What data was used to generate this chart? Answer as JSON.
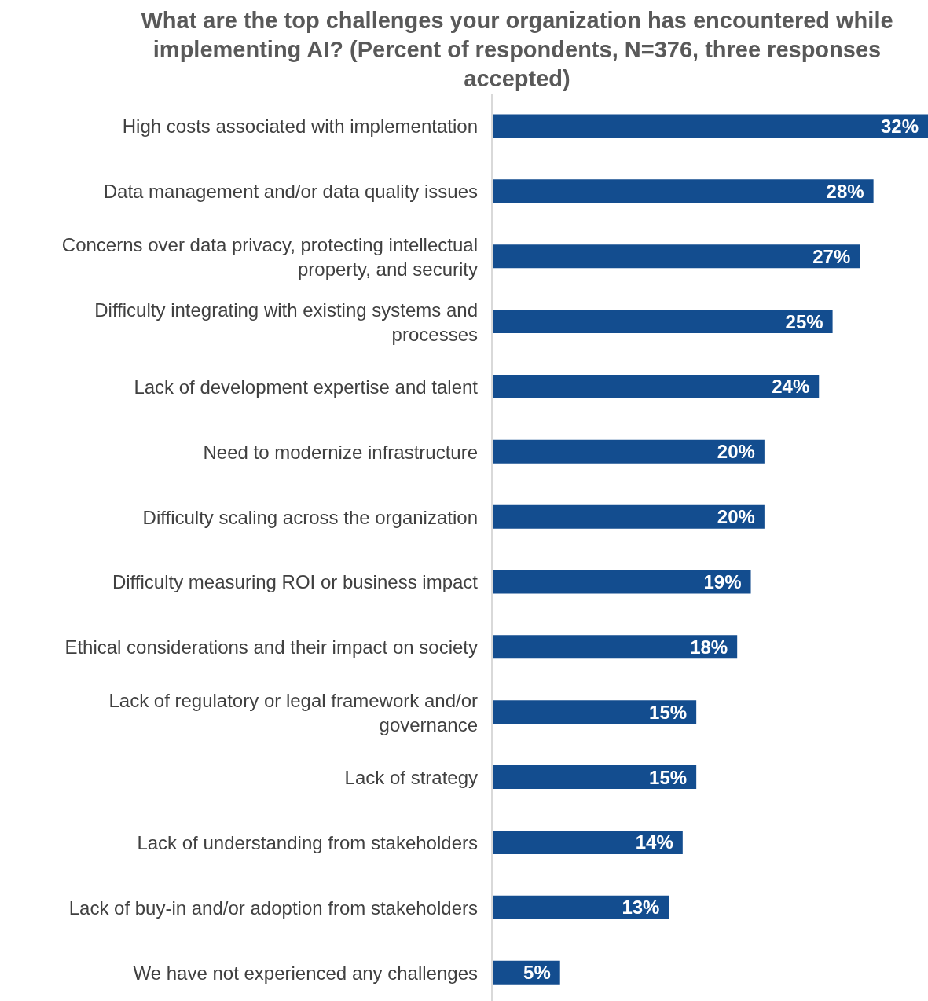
{
  "chart_data": {
    "type": "bar",
    "orientation": "horizontal",
    "title": "What are the top challenges your organization has encountered while implementing AI? (Percent of respondents, N=376, three responses accepted)",
    "categories": [
      "High costs associated with implementation",
      "Data management and/or data quality issues",
      "Concerns over data privacy, protecting intellectual property, and security",
      "Difficulty integrating with existing systems and processes",
      "Lack of development expertise and talent",
      "Need to modernize infrastructure",
      "Difficulty scaling across the organization",
      "Difficulty measuring ROI or business impact",
      "Ethical considerations and their impact on society",
      "Lack of regulatory or legal framework and/or governance",
      "Lack of strategy",
      "Lack of understanding from stakeholders",
      "Lack of buy-in and/or adoption from stakeholders",
      "We have not experienced any challenges"
    ],
    "values": [
      32,
      28,
      27,
      25,
      24,
      20,
      20,
      19,
      18,
      15,
      15,
      14,
      13,
      5
    ],
    "value_labels": [
      "32%",
      "28%",
      "27%",
      "25%",
      "24%",
      "20%",
      "20%",
      "19%",
      "18%",
      "15%",
      "15%",
      "14%",
      "13%",
      "5%"
    ],
    "color": "#134d8f"
  }
}
